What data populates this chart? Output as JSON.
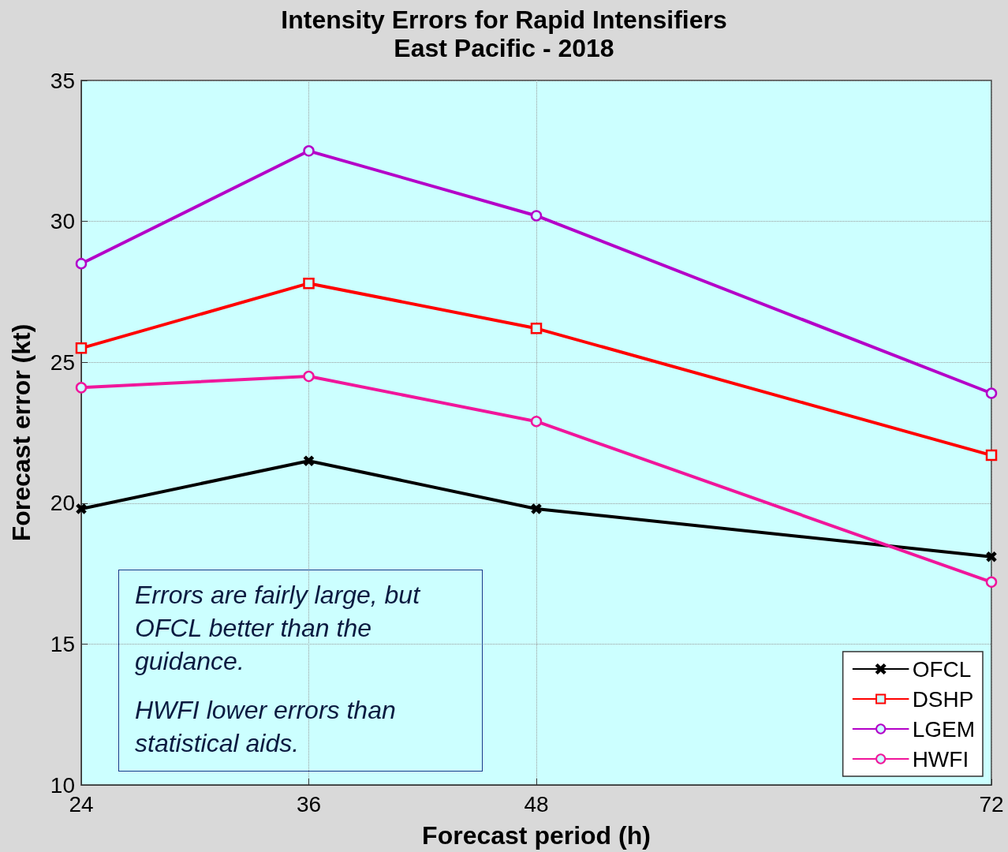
{
  "chart_data": {
    "type": "line",
    "title": "Intensity Errors for Rapid Intensifiers",
    "subtitle": "East Pacific - 2018",
    "xlabel": "Forecast period (h)",
    "ylabel": "Forecast error (kt)",
    "x": [
      24,
      36,
      48,
      72
    ],
    "xlim": [
      24,
      72
    ],
    "xticks": [
      24,
      36,
      48,
      72
    ],
    "ylim": [
      10,
      35
    ],
    "yticks": [
      10,
      15,
      20,
      25,
      30,
      35
    ],
    "series": [
      {
        "name": "OFCL",
        "color": "#000000",
        "marker": "cross",
        "values": [
          19.8,
          21.5,
          19.8,
          18.1
        ]
      },
      {
        "name": "DSHP",
        "color": "#ff0000",
        "marker": "square",
        "values": [
          25.5,
          27.8,
          26.2,
          21.7
        ]
      },
      {
        "name": "LGEM",
        "color": "#b400c8",
        "marker": "circle",
        "values": [
          28.5,
          32.5,
          30.2,
          23.9
        ]
      },
      {
        "name": "HWFI",
        "color": "#f0169b",
        "marker": "circle",
        "values": [
          24.1,
          24.5,
          22.9,
          17.2
        ]
      }
    ],
    "annotations": [
      "Errors are fairly large, but OFCL better than the guidance.",
      "HWFI lower errors than statistical aids."
    ],
    "grid": true,
    "legend": "bottom right",
    "line_style": "solid"
  }
}
